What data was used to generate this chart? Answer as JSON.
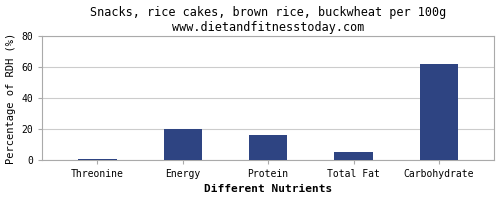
{
  "title": "Snacks, rice cakes, brown rice, buckwheat per 100g",
  "subtitle": "www.dietandfitnesstoday.com",
  "categories": [
    "Threonine",
    "Energy",
    "Protein",
    "Total Fat",
    "Carbohydrate"
  ],
  "values": [
    0.5,
    20,
    16,
    5,
    62
  ],
  "bar_color": "#2e4482",
  "xlabel": "Different Nutrients",
  "ylabel": "Percentage of RDH (%)",
  "ylim": [
    0,
    80
  ],
  "yticks": [
    0,
    20,
    40,
    60,
    80
  ],
  "background_color": "#ffffff",
  "plot_bg_color": "#ffffff",
  "border_color": "#aaaaaa",
  "grid_color": "#cccccc",
  "title_fontsize": 8.5,
  "subtitle_fontsize": 7.5,
  "axis_label_fontsize": 7.5,
  "tick_fontsize": 7,
  "xlabel_fontsize": 8,
  "xlabel_fontweight": "bold"
}
